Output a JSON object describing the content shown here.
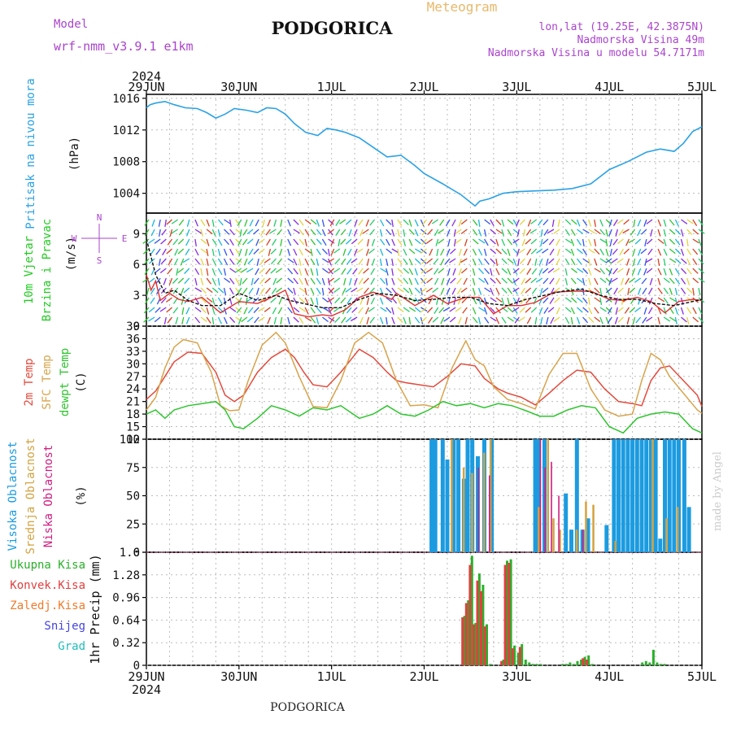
{
  "header": {
    "model_label": "Model",
    "model_name": "wrf-nmm_v3.9.1 e1km",
    "station": "PODGORICA",
    "product": "Meteogram",
    "coords": "lon,lat (19.25E, 42.3875N)",
    "altitude": "Nadmorska Visina 49m",
    "model_altitude": "Nadmorska Visina u modelu 54.7171m",
    "watermark": "made by Angel",
    "footer_station": "PODGORICA"
  },
  "colors": {
    "pressure": "#2aa2e4",
    "t2m": "#e24a3c",
    "sfc": "#d8a44c",
    "dewpt": "#2ec52e",
    "wind_label": "#22cc22",
    "cloud_high": "#1c9be0",
    "cloud_mid": "#d4a240",
    "cloud_low": "#d01c80",
    "precip_total": "#2ab02a",
    "precip_conv": "#e04040",
    "precip_frozen": "#ee7a2a",
    "precip_snow": "#4444dd",
    "precip_grad": "#22bbbb",
    "axis_purple": "#aa44cc"
  },
  "chart_data": [
    {
      "type": "line",
      "panel": "pressure",
      "x_ticks": [
        "29JUN",
        "30JUN",
        "1JUL",
        "2JUL",
        "3JUL",
        "4JUL",
        "5JUL"
      ],
      "x_top_year": "2024",
      "x_bottom_year": "2024",
      "ylabel_lines": [
        "Pritisak na nivou mora",
        "(hPa)"
      ],
      "ylim": [
        1001.5,
        1016.5
      ],
      "y_ticks": [
        1004,
        1008,
        1012,
        1016
      ],
      "x_unit": "days since 29JUN 00UTC",
      "series": [
        {
          "name": "Pritisak na nivou mora",
          "x": [
            0,
            0.04,
            0.1,
            0.2,
            0.3,
            0.42,
            0.55,
            0.65,
            0.75,
            0.85,
            0.95,
            1.08,
            1.2,
            1.3,
            1.4,
            1.5,
            1.6,
            1.72,
            1.85,
            1.95,
            2.05,
            2.15,
            2.3,
            2.45,
            2.6,
            2.75,
            2.9,
            3.0,
            3.2,
            3.4,
            3.55,
            3.6,
            3.7,
            3.85,
            4.0,
            4.2,
            4.4,
            4.6,
            4.8,
            5.0,
            5.2,
            5.4,
            5.55,
            5.7,
            5.8,
            5.9,
            6.0
          ],
          "y": [
            1014.8,
            1015.2,
            1015.4,
            1015.6,
            1015.2,
            1014.8,
            1014.7,
            1014.2,
            1013.5,
            1014.0,
            1014.7,
            1014.5,
            1014.2,
            1014.8,
            1014.7,
            1014.0,
            1012.8,
            1011.7,
            1011.3,
            1012.2,
            1012.0,
            1011.7,
            1011.0,
            1009.8,
            1008.6,
            1008.8,
            1007.5,
            1006.5,
            1005.2,
            1003.8,
            1002.4,
            1003.0,
            1003.3,
            1004.0,
            1004.2,
            1004.3,
            1004.4,
            1004.6,
            1005.2,
            1007.0,
            1008.0,
            1009.2,
            1009.6,
            1009.3,
            1010.3,
            1011.8,
            1012.4
          ]
        }
      ]
    },
    {
      "type": "line",
      "panel": "wind",
      "ylabel_lines": [
        "10m Vjetar",
        "Brzina i Pravac",
        "(m/s)"
      ],
      "compass_labels": [
        "N",
        "W",
        "E",
        "S"
      ],
      "ylim": [
        0,
        11
      ],
      "y_ticks": [
        0,
        3,
        6,
        9
      ],
      "x_unit": "days since 29JUN 00UTC",
      "series": [
        {
          "name": "Brzina",
          "x": [
            0,
            0.05,
            0.1,
            0.15,
            0.25,
            0.35,
            0.45,
            0.6,
            0.8,
            1.0,
            1.2,
            1.35,
            1.5,
            1.6,
            1.75,
            1.9,
            2.0,
            2.15,
            2.3,
            2.45,
            2.55,
            2.65,
            2.7,
            2.9,
            3.1,
            3.25,
            3.45,
            3.6,
            3.75,
            3.9,
            4.05,
            4.2,
            4.4,
            4.6,
            4.8,
            5.0,
            5.15,
            5.3,
            5.45,
            5.6,
            5.75,
            5.9,
            6.0
          ],
          "y": [
            5.0,
            3.5,
            4.4,
            2.5,
            3.2,
            2.6,
            2.4,
            2.8,
            1.3,
            2.4,
            2.2,
            2.8,
            3.5,
            1.2,
            0.9,
            1.1,
            1.0,
            1.6,
            2.8,
            3.3,
            3.0,
            2.6,
            3.2,
            2.0,
            3.0,
            2.2,
            2.8,
            2.8,
            1.2,
            2.0,
            2.0,
            2.3,
            3.3,
            3.4,
            3.4,
            2.6,
            2.5,
            2.8,
            2.4,
            1.3,
            2.4,
            2.6,
            2.5
          ]
        },
        {
          "name": "Udari",
          "x": [
            0,
            0.1,
            0.2,
            0.3,
            0.45,
            0.6,
            0.8,
            1.0,
            1.2,
            1.4,
            1.55,
            1.7,
            1.9,
            2.1,
            2.3,
            2.5,
            2.7,
            2.9,
            3.1,
            3.3,
            3.5,
            3.7,
            3.9,
            4.1,
            4.3,
            4.5,
            4.7,
            4.9,
            5.1,
            5.3,
            5.5,
            5.7,
            5.9,
            6.0
          ],
          "y": [
            8.5,
            5.0,
            3.2,
            3.5,
            2.5,
            2.0,
            2.0,
            3.2,
            2.5,
            3.0,
            2.5,
            2.2,
            1.8,
            1.8,
            2.6,
            3.2,
            3.0,
            2.5,
            2.6,
            2.8,
            2.8,
            2.2,
            2.0,
            2.6,
            3.0,
            3.4,
            3.6,
            3.0,
            2.6,
            2.6,
            2.2,
            2.0,
            2.4,
            2.6
          ]
        }
      ]
    },
    {
      "type": "line",
      "panel": "temperature",
      "ylabel_lines": [
        "2m Temp",
        "SFC Temp",
        "dewpt Temp",
        "(C)"
      ],
      "ylim": [
        12,
        39
      ],
      "y_ticks": [
        12,
        15,
        18,
        21,
        24,
        27,
        30,
        33,
        36,
        39
      ],
      "x_unit": "days since 29JUN 00UTC",
      "series": [
        {
          "name": "2m Temp",
          "x": [
            0,
            0.1,
            0.2,
            0.3,
            0.45,
            0.6,
            0.75,
            0.85,
            0.95,
            1.05,
            1.2,
            1.35,
            1.5,
            1.6,
            1.7,
            1.8,
            1.95,
            2.1,
            2.3,
            2.45,
            2.6,
            2.7,
            2.8,
            2.95,
            3.1,
            3.25,
            3.4,
            3.55,
            3.65,
            3.8,
            3.9,
            4.05,
            4.2,
            4.35,
            4.5,
            4.65,
            4.8,
            4.95,
            5.1,
            5.25,
            5.35,
            5.45,
            5.55,
            5.65,
            5.8,
            5.95,
            6.0
          ],
          "y": [
            21.5,
            23.5,
            27,
            30.5,
            32.8,
            32.5,
            28,
            22.5,
            21,
            22.5,
            28,
            31.5,
            33.5,
            31.5,
            28,
            25,
            24.5,
            28,
            33.5,
            31.5,
            28,
            26,
            25.5,
            25,
            24.5,
            27,
            30,
            29.5,
            26.5,
            24,
            23,
            22,
            20.2,
            23,
            26,
            28.5,
            28,
            24,
            21,
            20.5,
            20,
            26,
            29,
            29.5,
            26,
            22.5,
            19.8
          ]
        },
        {
          "name": "SFC Temp",
          "x": [
            0,
            0.1,
            0.2,
            0.3,
            0.4,
            0.55,
            0.7,
            0.8,
            0.9,
            1.0,
            1.1,
            1.25,
            1.4,
            1.5,
            1.65,
            1.8,
            1.95,
            2.1,
            2.25,
            2.4,
            2.55,
            2.7,
            2.85,
            3.0,
            3.15,
            3.3,
            3.45,
            3.55,
            3.65,
            3.75,
            3.9,
            4.05,
            4.2,
            4.35,
            4.5,
            4.65,
            4.8,
            4.95,
            5.1,
            5.25,
            5.35,
            5.45,
            5.55,
            5.65,
            5.8,
            5.95,
            6.0
          ],
          "y": [
            19,
            22,
            29,
            34,
            35.8,
            35,
            28,
            20,
            18.8,
            19,
            26,
            34.5,
            37.5,
            35,
            27,
            19.8,
            19.5,
            26,
            35,
            37.5,
            35,
            26,
            20,
            20.2,
            19.5,
            29,
            35.5,
            31,
            29.5,
            24.5,
            21.5,
            20.5,
            19.2,
            27.5,
            32.5,
            32.5,
            24,
            19,
            17.5,
            18,
            26,
            32.5,
            31,
            27,
            23,
            19,
            18.2
          ]
        },
        {
          "name": "dewpt Temp",
          "x": [
            0,
            0.1,
            0.2,
            0.3,
            0.45,
            0.6,
            0.75,
            0.85,
            0.95,
            1.05,
            1.2,
            1.35,
            1.5,
            1.65,
            1.8,
            1.95,
            2.1,
            2.3,
            2.45,
            2.6,
            2.75,
            2.9,
            3.05,
            3.2,
            3.35,
            3.5,
            3.65,
            3.8,
            3.95,
            4.1,
            4.25,
            4.4,
            4.55,
            4.7,
            4.85,
            5.0,
            5.15,
            5.3,
            5.45,
            5.6,
            5.75,
            5.9,
            6.0
          ],
          "y": [
            18,
            19,
            17,
            19,
            20,
            20.5,
            21,
            19,
            15,
            14.5,
            17,
            20,
            19,
            17.5,
            19.5,
            19,
            20,
            17,
            18,
            20,
            18,
            17.5,
            19,
            21,
            20,
            20.5,
            19.5,
            20.5,
            20,
            18.8,
            17.5,
            17.5,
            19,
            20,
            19.5,
            15,
            13.5,
            17,
            18,
            18.5,
            18,
            14.5,
            13.5
          ]
        }
      ]
    },
    {
      "type": "bar",
      "panel": "clouds",
      "ylabel_lines": [
        "Visoka Oblacnost",
        "Srednja Oblacnost",
        "Niska Oblacnost",
        "(%)"
      ],
      "ylim": [
        0,
        100
      ],
      "y_ticks": [
        0,
        25,
        50,
        75,
        100
      ],
      "x_unit": "days since 29JUN 00UTC",
      "series": [
        {
          "name": "Visoka Oblacnost",
          "x": [
            3.08,
            3.12,
            3.2,
            3.25,
            3.32,
            3.37,
            3.43,
            3.47,
            3.52,
            3.58,
            3.65,
            3.73,
            4.2,
            4.24,
            4.3,
            4.53,
            4.59,
            4.65,
            4.71,
            4.77,
            4.97,
            5.05,
            5.1,
            5.15,
            5.2,
            5.25,
            5.3,
            5.35,
            5.4,
            5.45,
            5.5,
            5.55,
            5.6,
            5.65,
            5.7,
            5.75,
            5.81,
            5.86
          ],
          "y": [
            100,
            100,
            100,
            82,
            100,
            100,
            65,
            100,
            100,
            85,
            100,
            100,
            100,
            100,
            100,
            52,
            20,
            100,
            20,
            30,
            24,
            100,
            100,
            100,
            100,
            100,
            100,
            100,
            100,
            100,
            100,
            12,
            100,
            100,
            100,
            100,
            100,
            40
          ]
        },
        {
          "name": "Srednja Oblacnost",
          "x": [
            3.28,
            3.41,
            3.5,
            3.63,
            3.7,
            4.22,
            4.32,
            4.38,
            4.45,
            4.63,
            4.73,
            4.81,
            5.05,
            5.45,
            5.6,
            5.72
          ],
          "y": [
            100,
            75,
            70,
            88,
            100,
            40,
            100,
            30,
            20,
            20,
            45,
            42,
            10,
            100,
            30,
            40
          ]
        },
        {
          "name": "Niska Oblacnost",
          "x": [
            3.55,
            3.67,
            4.22,
            4.27,
            4.34,
            4.42,
            4.68
          ],
          "y": [
            75,
            68,
            100,
            75,
            80,
            50,
            20
          ]
        }
      ]
    },
    {
      "type": "bar",
      "panel": "precip",
      "ylabel_lines": [
        "1hr Precip (mm)"
      ],
      "legend": [
        "Ukupna Kisa",
        "Konvek.Kisa",
        "Zaledj.Kisa",
        "Snijeg",
        "Grad"
      ],
      "ylim": [
        0,
        1.6
      ],
      "y_ticks": [
        0,
        0.32,
        0.64,
        0.96,
        1.28,
        1.6
      ],
      "x_unit": "days since 29JUN 00UTC",
      "series": [
        {
          "name": "Ukupna Kisa",
          "x": [
            3.43,
            3.47,
            3.51,
            3.55,
            3.59,
            3.63,
            3.67,
            3.71,
            3.85,
            3.89,
            3.93,
            3.97,
            4.01,
            4.05,
            4.09,
            4.13,
            4.17,
            4.21,
            4.25,
            4.49,
            4.53,
            4.57,
            4.61,
            4.65,
            4.69,
            4.73,
            4.77,
            4.81,
            5.35,
            5.39,
            5.43,
            5.47,
            5.51,
            5.55,
            5.59
          ],
          "y": [
            0.7,
            0.92,
            1.55,
            0.6,
            1.3,
            1.14,
            0.58,
            0.02,
            0.08,
            1.48,
            1.5,
            0.28,
            0.18,
            0.3,
            0.08,
            0.04,
            0.02,
            0.02,
            0.02,
            0.02,
            0.02,
            0.04,
            0.02,
            0.06,
            0.08,
            0.12,
            0.14,
            0.02,
            0.04,
            0.06,
            0.04,
            0.22,
            0.04,
            0.02,
            0.02
          ]
        },
        {
          "name": "Konvek.Kisa",
          "x": [
            3.43,
            3.47,
            3.51,
            3.55,
            3.59,
            3.63,
            3.67,
            3.85,
            3.89,
            3.93,
            3.97,
            4.05,
            4.73,
            4.77
          ],
          "y": [
            0.68,
            0.88,
            1.42,
            0.58,
            1.2,
            1.05,
            0.55,
            0.06,
            1.42,
            1.45,
            0.24,
            0.26,
            0.1,
            0.08
          ]
        }
      ]
    }
  ]
}
